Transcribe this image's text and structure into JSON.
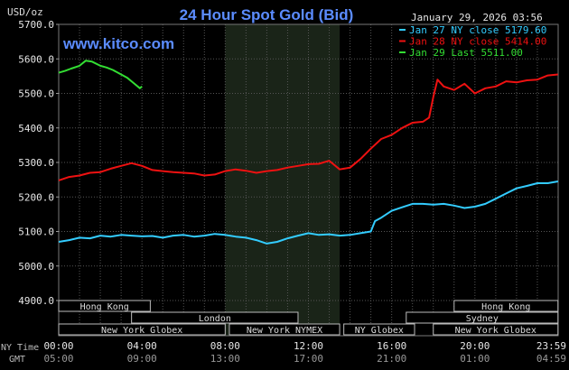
{
  "chart_data": {
    "type": "line",
    "title": "24 Hour Spot Gold (Bid)",
    "brand": "www.kitco.com",
    "timestamp": "January 29, 2026 03:56",
    "ylabel": "USD/oz",
    "ylim": [
      4900,
      5700
    ],
    "yticks": [
      "5700.0",
      "5600.0",
      "5500.0",
      "5400.0",
      "5300.0",
      "5200.0",
      "5100.0",
      "5000.0",
      "4900.0"
    ],
    "xlim": [
      0,
      24
    ],
    "xticks": [
      "00:00",
      "04:00",
      "08:00",
      "12:00",
      "16:00",
      "20:00",
      "23:59"
    ],
    "gmt_ticks": [
      "05:00",
      "09:00",
      "13:00",
      "17:00",
      "21:00",
      "01:00",
      "04:59"
    ],
    "row_labels": {
      "ny_time": "NY Time",
      "gmt": "GMT"
    },
    "grid": true,
    "legend_position": "top-right",
    "shaded_session": [
      8,
      13.5
    ],
    "markets": {
      "row1": [
        {
          "name": "Hong Kong",
          "start": 0,
          "end": 4.4
        },
        {
          "name": "Hong Kong",
          "start": 19,
          "end": 23.99
        }
      ],
      "row2": [
        {
          "name": "London",
          "start": 3.5,
          "end": 11.5
        },
        {
          "name": "Sydney",
          "start": 16.7,
          "end": 23.99
        }
      ],
      "row3": [
        {
          "name": "New York Globex",
          "start": 0,
          "end": 8
        },
        {
          "name": "New York NYMEX",
          "start": 8.2,
          "end": 13.5
        },
        {
          "name": "NY Globex",
          "start": 13.7,
          "end": 17.1
        },
        {
          "name": "New York Globex",
          "start": 18,
          "end": 23.99
        }
      ]
    },
    "series": [
      {
        "name": "Jan 27 NY close 5179.60",
        "color": "#33ccff",
        "x": [
          0,
          0.5,
          1,
          1.5,
          2,
          2.5,
          3,
          3.5,
          4,
          4.5,
          5,
          5.5,
          6,
          6.5,
          7,
          7.5,
          8,
          8.5,
          9,
          9.5,
          10,
          10.5,
          11,
          11.5,
          12,
          12.5,
          13,
          13.5,
          14,
          14.5,
          15,
          15.2,
          15.5,
          16,
          16.5,
          17,
          17.5,
          18,
          18.5,
          19,
          19.5,
          20,
          20.5,
          21,
          21.5,
          22,
          22.5,
          23,
          23.5,
          23.99
        ],
        "y": [
          5070,
          5075,
          5082,
          5080,
          5088,
          5085,
          5090,
          5088,
          5086,
          5087,
          5082,
          5088,
          5090,
          5085,
          5088,
          5093,
          5090,
          5085,
          5082,
          5075,
          5065,
          5070,
          5080,
          5088,
          5095,
          5090,
          5092,
          5088,
          5090,
          5095,
          5100,
          5130,
          5140,
          5160,
          5170,
          5180,
          5180,
          5178,
          5180,
          5175,
          5168,
          5172,
          5180,
          5195,
          5210,
          5225,
          5232,
          5240,
          5240,
          5245
        ]
      },
      {
        "name": "Jan 28 NY close 5414.00",
        "color": "#ee1111",
        "x": [
          0,
          0.5,
          1,
          1.5,
          2,
          2.5,
          3,
          3.5,
          4,
          4.5,
          5,
          5.5,
          6,
          6.5,
          7,
          7.5,
          8,
          8.5,
          9,
          9.5,
          10,
          10.5,
          11,
          11.5,
          12,
          12.5,
          13,
          13.5,
          14,
          14.5,
          15,
          15.5,
          16,
          16.5,
          17,
          17.5,
          17.8,
          18,
          18.2,
          18.5,
          19,
          19.5,
          20,
          20.5,
          21,
          21.5,
          22,
          22.5,
          23,
          23.5,
          23.99
        ],
        "y": [
          5248,
          5258,
          5262,
          5270,
          5272,
          5282,
          5290,
          5298,
          5290,
          5278,
          5275,
          5272,
          5270,
          5268,
          5262,
          5265,
          5275,
          5280,
          5276,
          5270,
          5275,
          5278,
          5285,
          5290,
          5295,
          5296,
          5305,
          5280,
          5285,
          5310,
          5340,
          5368,
          5380,
          5400,
          5415,
          5418,
          5430,
          5490,
          5540,
          5520,
          5510,
          5528,
          5500,
          5515,
          5520,
          5535,
          5532,
          5538,
          5540,
          5552,
          5555
        ]
      },
      {
        "name": "Jan 29 Last 5511.00",
        "color": "#33dd33",
        "x": [
          0,
          0.3,
          0.6,
          1,
          1.3,
          1.6,
          2,
          2.3,
          2.6,
          3,
          3.3,
          3.6,
          3.9,
          4
        ],
        "y": [
          5560,
          5565,
          5572,
          5580,
          5595,
          5592,
          5580,
          5575,
          5568,
          5555,
          5545,
          5530,
          5515,
          5520
        ]
      }
    ]
  }
}
